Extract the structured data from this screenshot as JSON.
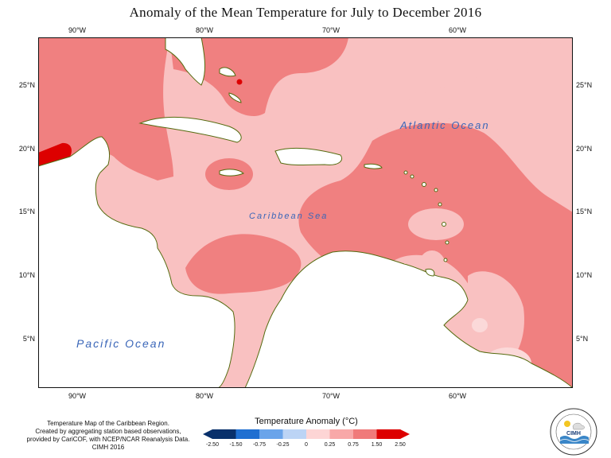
{
  "title": "Anomaly of the Mean Temperature for July to December 2016",
  "lon_ticks_top": [
    "90°W",
    "80°W",
    "70°W",
    "60°W"
  ],
  "lon_ticks_bottom": [
    "90°W",
    "80°W",
    "70°W",
    "60°W"
  ],
  "lat_ticks_left": [
    "25°N",
    "20°N",
    "15°N",
    "10°N",
    "5°N"
  ],
  "lat_ticks_right": [
    "25°N",
    "20°N",
    "15°N",
    "10°N",
    "5°N"
  ],
  "labels": {
    "atlantic": "Atlantic Ocean",
    "caribbean": "Caribbean Sea",
    "pacific": "Pacific Ocean"
  },
  "credit": {
    "line1": "Temperature Map of the Caribbean Region.",
    "line2": "Created by aggregating station based observations,",
    "line3": "provided by CariCOF, with NCEP/NCAR Reanalysis Data.",
    "line4": "CIMH 2016"
  },
  "legend": {
    "title": "Temperature Anomaly (°C)",
    "labels": [
      "-2.50",
      "-1.50",
      "-0.75",
      "-0.25",
      "0",
      "0.25",
      "0.75",
      "1.50",
      "2.50"
    ],
    "colors": [
      "#08306b",
      "#1f6fd1",
      "#6aa4ea",
      "#bcd4f5",
      "#ffffff",
      "#fdd5d5",
      "#f8a8a8",
      "#f07a7a",
      "#dd0000"
    ]
  },
  "logo": {
    "text": "CIMH",
    "icon": "cimh-logo-icon"
  }
}
